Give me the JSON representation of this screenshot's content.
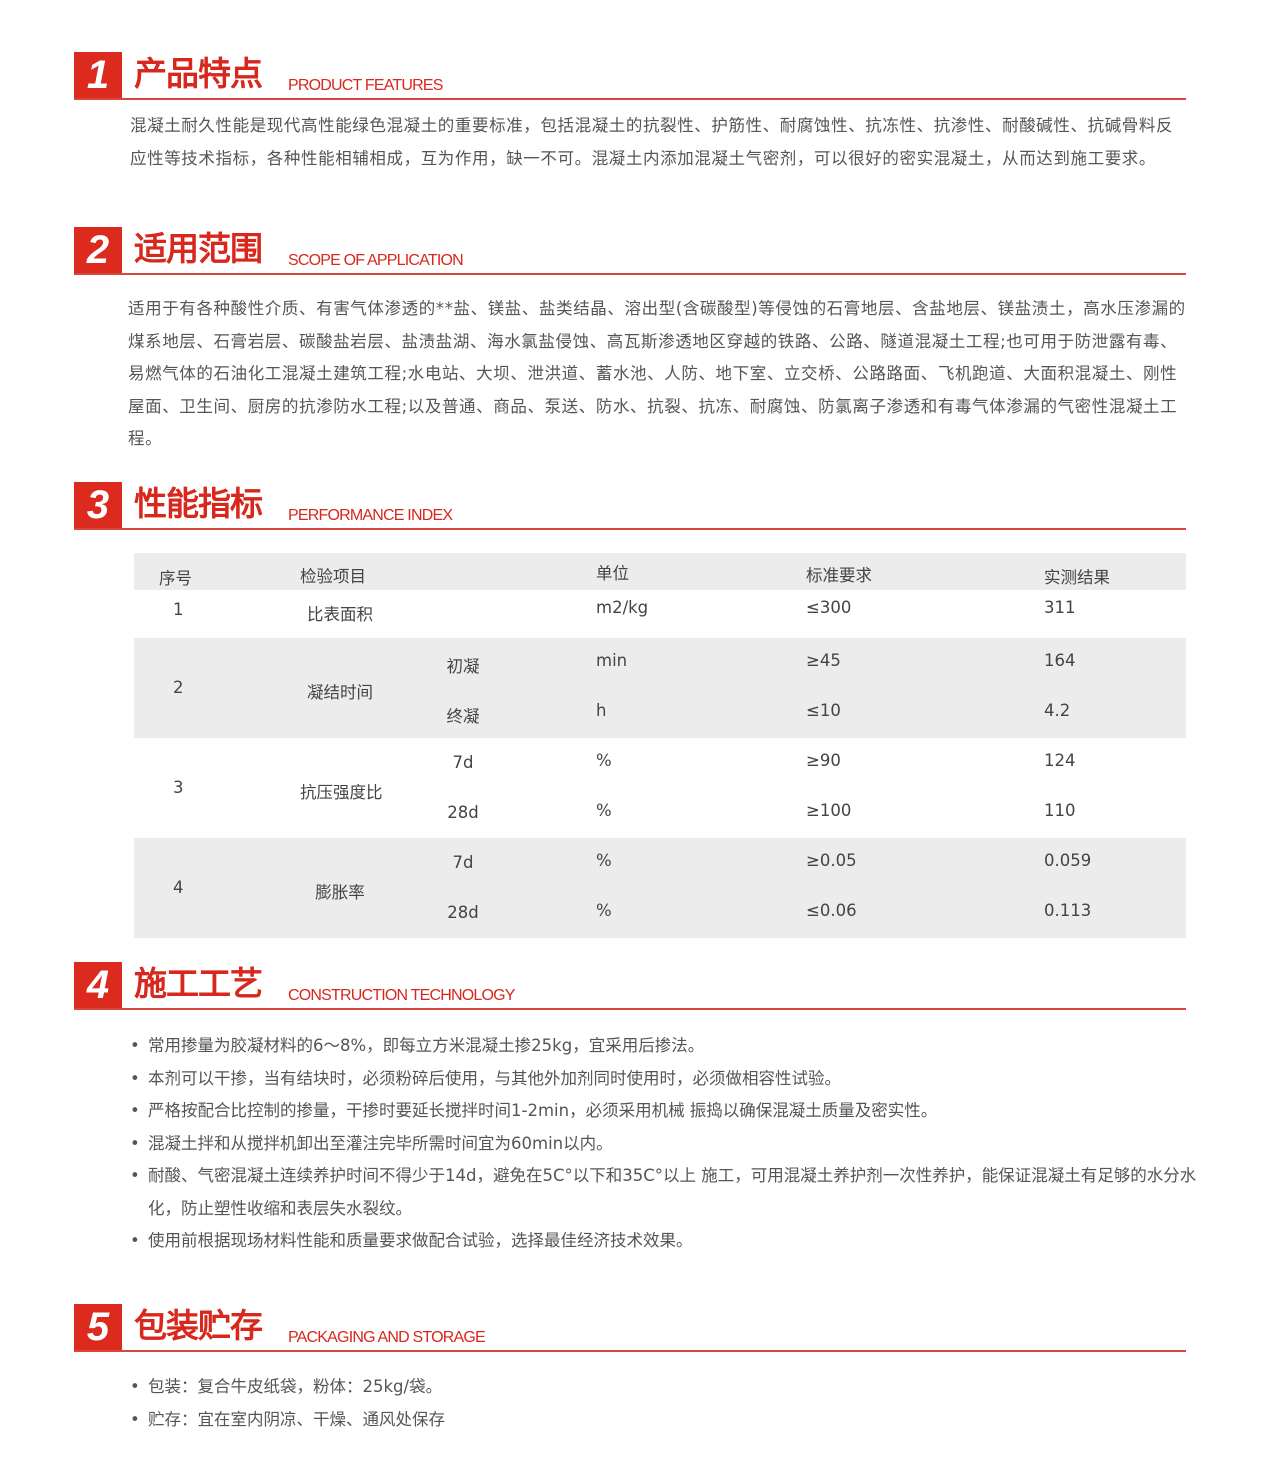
{
  "accent_color": "#dc2a1f",
  "sections": [
    {
      "num": "1",
      "title_zh": "产品特点",
      "title_en": "PRODUCT FEATURES"
    },
    {
      "num": "2",
      "title_zh": "适用范围",
      "title_en": "SCOPE OF APPLICATION"
    },
    {
      "num": "3",
      "title_zh": "性能指标",
      "title_en": "PERFORMANCE INDEX"
    },
    {
      "num": "4",
      "title_zh": "施工工艺",
      "title_en": "CONSTRUCTION TECHNOLOGY"
    },
    {
      "num": "5",
      "title_zh": "包装贮存",
      "title_en": "PACKAGING AND STORAGE"
    }
  ],
  "features_text": "混凝土耐久性能是现代高性能绿色混凝土的重要标准，包括混凝土的抗裂性、护筋性、耐腐蚀性、抗冻性、抗渗性、耐酸碱性、抗碱骨料反应性等技术指标，各种性能相辅相成，互为作用，缺一不可。混凝土内添加混凝土气密剂，可以很好的密实混凝土，从而达到施工要求。",
  "scope_text": "适用于有各种酸性介质、有害气体渗透的**盐、镁盐、盐类结晶、溶出型(含碳酸型)等侵蚀的石膏地层、含盐地层、镁盐渍土，高水压渗漏的煤系地层、石膏岩层、碳酸盐岩层、盐渍盐湖、海水氯盐侵蚀、高瓦斯渗透地区穿越的铁路、公路、隧道混凝土工程;也可用于防泄露有毒、易燃气体的石油化工混凝土建筑工程;水电站、大坝、泄洪道、蓄水池、人防、地下室、立交桥、公路路面、飞机跑道、大面积混凝土、刚性屋面、卫生间、厨房的抗渗防水工程;以及普通、商品、泵送、防水、抗裂、抗冻、耐腐蚀、防氯离子渗透和有毒气体渗漏的气密性混凝土工程。",
  "table": {
    "headers": {
      "seq": "序号",
      "item": "检验项目",
      "unit": "单位",
      "standard": "标准要求",
      "result": "实测结果"
    },
    "rows": [
      {
        "seq": "1",
        "item": "比表面积",
        "subs": [
          {
            "sub": "",
            "unit": "m2/kg",
            "standard": "≤300",
            "result": "311"
          }
        ]
      },
      {
        "seq": "2",
        "item": "凝结时间",
        "subs": [
          {
            "sub": "初凝",
            "unit": "min",
            "standard": "≥45",
            "result": "164"
          },
          {
            "sub": "终凝",
            "unit": "h",
            "standard": "≤10",
            "result": "4.2"
          }
        ]
      },
      {
        "seq": "3",
        "item": "抗压强度比",
        "subs": [
          {
            "sub": "7d",
            "unit": "%",
            "standard": "≥90",
            "result": "124"
          },
          {
            "sub": "28d",
            "unit": "%",
            "standard": "≥100",
            "result": "110"
          }
        ]
      },
      {
        "seq": "4",
        "item": "膨胀率",
        "subs": [
          {
            "sub": "7d",
            "unit": "%",
            "standard": "≥0.05",
            "result": "0.059"
          },
          {
            "sub": "28d",
            "unit": "%",
            "standard": "≤0.06",
            "result": "0.113"
          }
        ]
      }
    ]
  },
  "construction": [
    "常用掺量为胶凝材料的6～8%，即每立方米混凝土掺25kg，宜采用后掺法。",
    "本剂可以干掺，当有结块时，必须粉碎后使用，与其他外加剂同时使用时，必须做相容性试验。",
    "严格按配合比控制的掺量，干掺时要延长搅拌时间1-2min，必须采用机械 振捣以确保混凝土质量及密实性。",
    "混凝土拌和从搅拌机卸出至灌注完毕所需时间宜为60min以内。",
    "耐酸、气密混凝土连续养护时间不得少于14d，避免在5C°以下和35C°以上 施工，可用混凝土养护剂一次性养护，能保证混凝土有足够的水分水化，防止塑性收缩和表层失水裂纹。",
    "使用前根据现场材料性能和质量要求做配合试验，选择最佳经济技术效果。"
  ],
  "packaging": [
    "包装：复合牛皮纸袋，粉体：25kg/袋。",
    "贮存：宜在室内阴凉、干燥、通风处保存"
  ]
}
